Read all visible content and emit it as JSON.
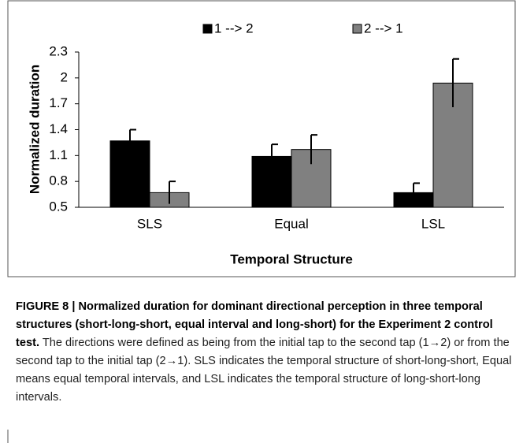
{
  "chart_data": {
    "type": "bar",
    "y_label": "Normalized duration",
    "x_label": "Temporal Structure",
    "categories": [
      "SLS",
      "Equal",
      "LSL"
    ],
    "series": [
      {
        "name": "1 --> 2",
        "color": "#000000",
        "values": [
          1.27,
          1.09,
          0.67
        ],
        "errors": [
          0.13,
          0.14,
          0.11
        ]
      },
      {
        "name": "2 --> 1",
        "color": "#808080",
        "values": [
          0.67,
          1.17,
          1.94
        ],
        "errors": [
          0.13,
          0.17,
          0.28
        ]
      }
    ],
    "ylim": [
      0.5,
      2.3
    ],
    "yticks": [
      0.5,
      0.8,
      1.1,
      1.4,
      1.7,
      2,
      2.3
    ],
    "legend": "top",
    "grid": false
  },
  "caption": {
    "label": "FIGURE 8 | Normalized duration for dominant directional perception in three temporal structures (short-long-short, equal interval and long-short) for the Experiment 2 control test.",
    "text": "The directions were defined as being from the initial tap to the second tap (1→2) or from the second tap to the initial tap (2→1). SLS indicates the temporal structure of short-long-short, Equal means equal temporal intervals, and LSL indicates the temporal structure of long-short-long intervals."
  }
}
